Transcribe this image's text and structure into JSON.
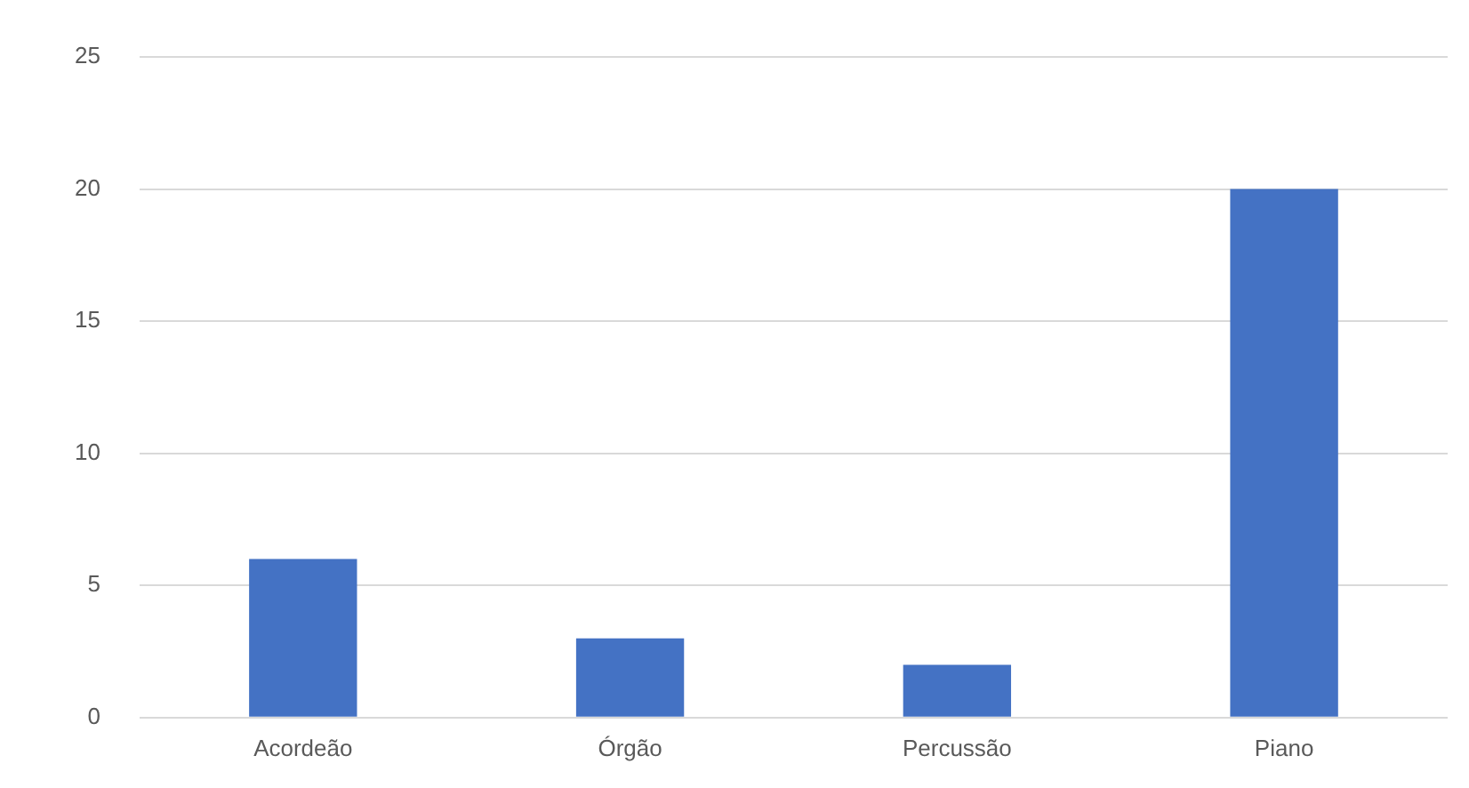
{
  "chart_data": {
    "type": "bar",
    "categories": [
      "Acordeão",
      "Órgão",
      "Percussão",
      "Piano"
    ],
    "values": [
      6,
      3,
      2,
      20
    ],
    "color": "#4472c4",
    "ylim": [
      0,
      25
    ],
    "yticks": [
      0,
      5,
      10,
      15,
      20,
      25
    ],
    "grid": "y"
  }
}
